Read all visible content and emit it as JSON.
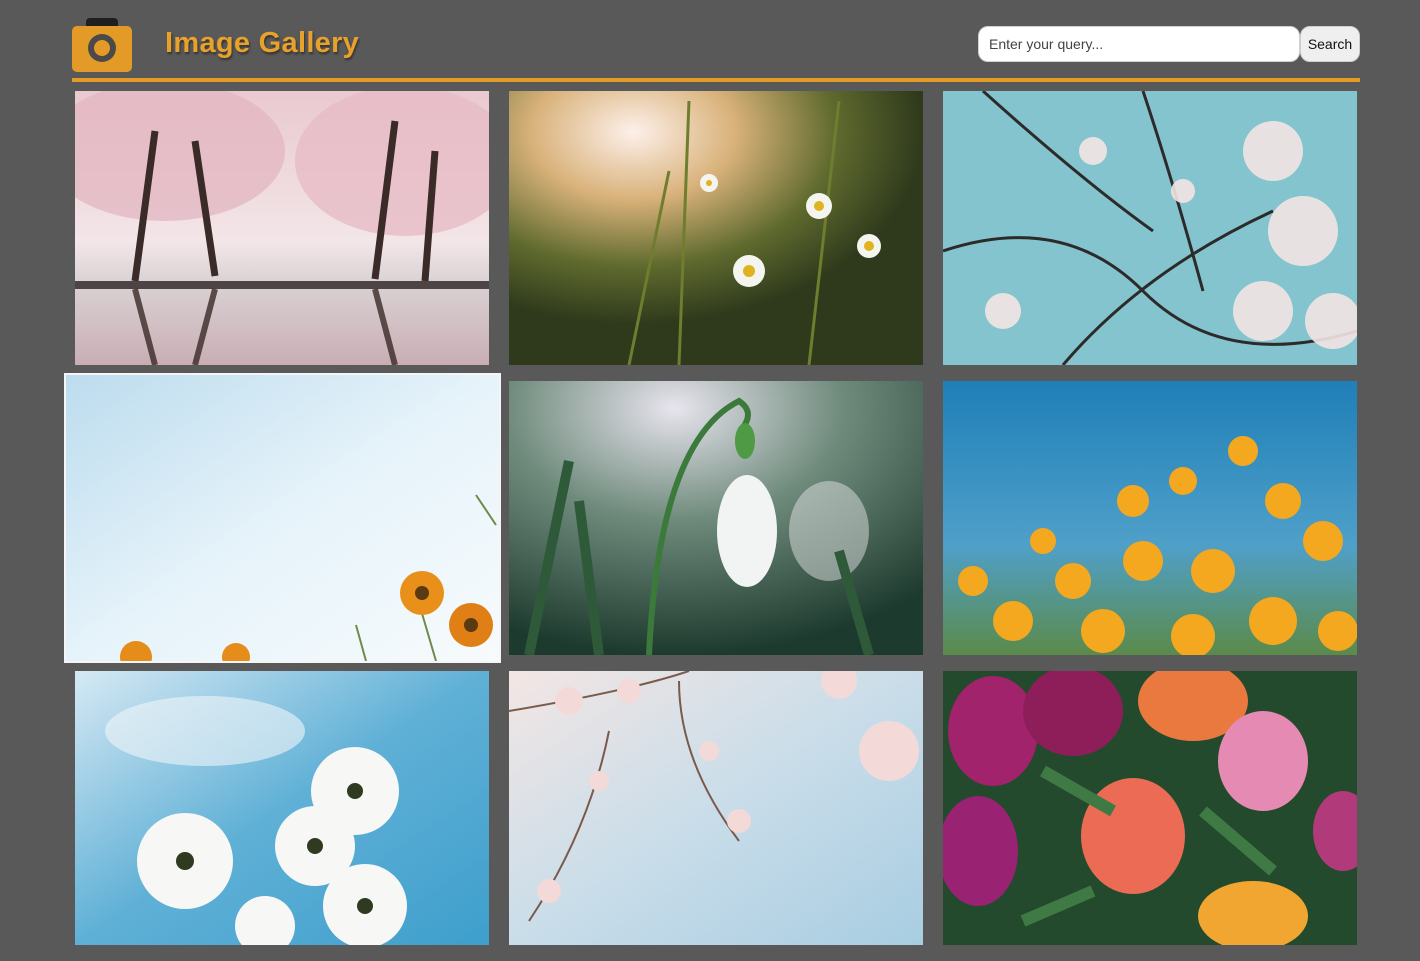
{
  "header": {
    "title": "Image Gallery",
    "logo_icon": "camera-icon",
    "accent_color": "#e8a12b"
  },
  "search": {
    "placeholder": "Enter your query...",
    "value": "",
    "button_label": "Search"
  },
  "gallery": {
    "images": [
      {
        "subject": "cherry-blossom-trees-reflection"
      },
      {
        "subject": "daisies-meadow-sunset"
      },
      {
        "subject": "blossom-branches-blue-sky"
      },
      {
        "subject": "orange-cosmos-sky"
      },
      {
        "subject": "snowdrop-flower"
      },
      {
        "subject": "orange-poppies-field"
      },
      {
        "subject": "white-cosmos-sky"
      },
      {
        "subject": "pink-blossom-branch"
      },
      {
        "subject": "tulip-bouquet"
      }
    ]
  }
}
